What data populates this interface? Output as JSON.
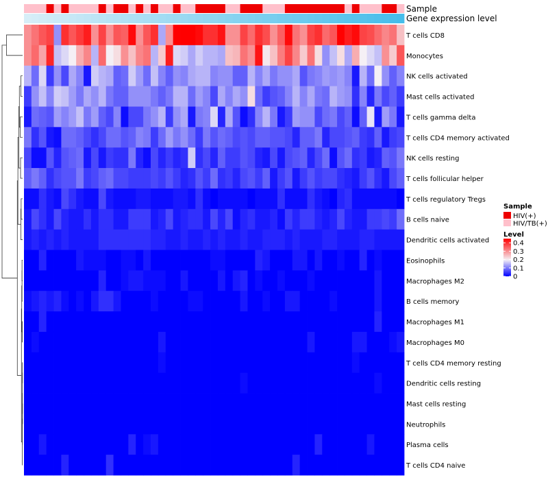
{
  "chart_data": {
    "type": "heatmap",
    "title": "",
    "annotation_labels": [
      "Sample",
      "Gene expression level"
    ],
    "rows": [
      "T cells CD8",
      "Monocytes",
      "NK cells activated",
      "Mast cells activated",
      "T cells gamma delta",
      "T cells CD4 memory activated",
      "NK cells resting",
      "T cells follicular helper",
      "T cells regulatory  Tregs",
      "B cells naive",
      "Dendritic cells activated",
      "Eosinophils",
      "Macrophages M2",
      "B cells memory",
      "Macrophages M1",
      "Macrophages M0",
      "T cells CD4 memory resting",
      "Dendritic cells resting",
      "Mast cells resting",
      "Neutrophils",
      "Plasma cells",
      "T cells CD4 naive"
    ],
    "sample_groups": [
      "HIV/TB(+)",
      "HIV/TB(+)",
      "HIV/TB(+)",
      "HIV(+)",
      "HIV/TB(+)",
      "HIV(+)",
      "HIV/TB(+)",
      "HIV/TB(+)",
      "HIV/TB(+)",
      "HIV/TB(+)",
      "HIV(+)",
      "HIV/TB(+)",
      "HIV(+)",
      "HIV(+)",
      "HIV/TB(+)",
      "HIV(+)",
      "HIV/TB(+)",
      "HIV(+)",
      "HIV/TB(+)",
      "HIV/TB(+)",
      "HIV(+)",
      "HIV/TB(+)",
      "HIV/TB(+)",
      "HIV(+)",
      "HIV(+)",
      "HIV(+)",
      "HIV(+)",
      "HIV/TB(+)",
      "HIV/TB(+)",
      "HIV(+)",
      "HIV(+)",
      "HIV(+)",
      "HIV/TB(+)",
      "HIV/TB(+)",
      "HIV/TB(+)",
      "HIV(+)",
      "HIV(+)",
      "HIV(+)",
      "HIV(+)",
      "HIV(+)",
      "HIV(+)",
      "HIV(+)",
      "HIV(+)",
      "HIV/TB(+)",
      "HIV(+)",
      "HIV/TB(+)",
      "HIV/TB(+)",
      "HIV/TB(+)",
      "HIV(+)",
      "HIV(+)",
      "HIV/TB(+)"
    ],
    "expression_level_ramp": [
      "#d7eef8",
      "#46bdea"
    ],
    "values": [
      [
        0.3,
        0.33,
        0.36,
        0.38,
        0.12,
        0.4,
        0.36,
        0.39,
        0.42,
        0.3,
        0.38,
        0.3,
        0.36,
        0.35,
        0.44,
        0.3,
        0.36,
        0.4,
        0.14,
        0.3,
        0.45,
        0.45,
        0.45,
        0.44,
        0.4,
        0.4,
        0.43,
        0.3,
        0.3,
        0.38,
        0.34,
        0.4,
        0.37,
        0.3,
        0.35,
        0.44,
        0.33,
        0.3,
        0.38,
        0.4,
        0.34,
        0.36,
        0.45,
        0.42,
        0.44,
        0.38,
        0.37,
        0.34,
        0.31,
        0.33,
        0.25
      ],
      [
        0.3,
        0.34,
        0.28,
        0.41,
        0.16,
        0.18,
        0.2,
        0.27,
        0.31,
        0.15,
        0.34,
        0.2,
        0.22,
        0.3,
        0.25,
        0.31,
        0.33,
        0.15,
        0.24,
        0.42,
        0.18,
        0.17,
        0.14,
        0.17,
        0.15,
        0.15,
        0.14,
        0.25,
        0.26,
        0.33,
        0.3,
        0.43,
        0.21,
        0.25,
        0.32,
        0.38,
        0.31,
        0.24,
        0.33,
        0.22,
        0.12,
        0.16,
        0.22,
        0.14,
        0.27,
        0.2,
        0.18,
        0.16,
        0.3,
        0.24,
        0.36
      ],
      [
        0.15,
        0.09,
        0.18,
        0.05,
        0.12,
        0.06,
        0.14,
        0.11,
        0.02,
        0.17,
        0.15,
        0.14,
        0.08,
        0.09,
        0.17,
        0.13,
        0.09,
        0.16,
        0.11,
        0.08,
        0.12,
        0.11,
        0.14,
        0.15,
        0.15,
        0.11,
        0.12,
        0.12,
        0.08,
        0.08,
        0.15,
        0.11,
        0.14,
        0.1,
        0.12,
        0.12,
        0.14,
        0.07,
        0.1,
        0.11,
        0.13,
        0.12,
        0.13,
        0.11,
        0.02,
        0.15,
        0.09,
        0.2,
        0.12,
        0.08,
        0.11
      ],
      [
        0.05,
        0.12,
        0.16,
        0.11,
        0.17,
        0.16,
        0.13,
        0.1,
        0.14,
        0.12,
        0.15,
        0.1,
        0.08,
        0.08,
        0.12,
        0.12,
        0.12,
        0.1,
        0.08,
        0.1,
        0.15,
        0.15,
        0.09,
        0.13,
        0.11,
        0.06,
        0.14,
        0.11,
        0.14,
        0.12,
        0.22,
        0.09,
        0.05,
        0.07,
        0.08,
        0.11,
        0.15,
        0.11,
        0.14,
        0.1,
        0.09,
        0.15,
        0.13,
        0.12,
        0.04,
        0.11,
        0.03,
        0.1,
        0.06,
        0.08,
        0.05
      ],
      [
        0.02,
        0.09,
        0.08,
        0.07,
        0.13,
        0.11,
        0.13,
        0.16,
        0.1,
        0.13,
        0.08,
        0.06,
        0.11,
        0.01,
        0.06,
        0.06,
        0.1,
        0.12,
        0.15,
        0.05,
        0.12,
        0.14,
        0.02,
        0.1,
        0.11,
        0.18,
        0.03,
        0.14,
        0.07,
        0.01,
        0.04,
        0.11,
        0.15,
        0.1,
        0.02,
        0.05,
        0.13,
        0.12,
        0.12,
        0.06,
        0.09,
        0.1,
        0.06,
        0.08,
        0.01,
        0.08,
        0.19,
        0.02,
        0.13,
        0.1,
        0.02
      ],
      [
        0.1,
        0.04,
        0.07,
        0.02,
        0.01,
        0.09,
        0.09,
        0.08,
        0.06,
        0.04,
        0.06,
        0.09,
        0.09,
        0.07,
        0.08,
        0.11,
        0.1,
        0.05,
        0.09,
        0.13,
        0.1,
        0.12,
        0.09,
        0.05,
        0.1,
        0.07,
        0.09,
        0.08,
        0.06,
        0.07,
        0.06,
        0.08,
        0.08,
        0.07,
        0.07,
        0.06,
        0.03,
        0.08,
        0.08,
        0.1,
        0.03,
        0.06,
        0.06,
        0.07,
        0.08,
        0.05,
        0.04,
        0.08,
        0.02,
        0.05,
        0.06
      ],
      [
        0.06,
        0.01,
        0.01,
        0.07,
        0.03,
        0.07,
        0.08,
        0.09,
        0.02,
        0.06,
        0.02,
        0.05,
        0.04,
        0.04,
        0.1,
        0.03,
        0.01,
        0.06,
        0.03,
        0.05,
        0.03,
        0.04,
        0.17,
        0.04,
        0.06,
        0.03,
        0.08,
        0.05,
        0.05,
        0.07,
        0.06,
        0.03,
        0.02,
        0.06,
        0.02,
        0.06,
        0.07,
        0.08,
        0.03,
        0.06,
        0.09,
        0.01,
        0.07,
        0.09,
        0.04,
        0.05,
        0.02,
        0.03,
        0.08,
        0.07,
        0.1
      ],
      [
        0.08,
        0.1,
        0.08,
        0.04,
        0.06,
        0.07,
        0.07,
        0.1,
        0.05,
        0.06,
        0.08,
        0.09,
        0.06,
        0.06,
        0.05,
        0.05,
        0.05,
        0.06,
        0.05,
        0.07,
        0.05,
        0.03,
        0.04,
        0.07,
        0.05,
        0.09,
        0.04,
        0.05,
        0.03,
        0.06,
        0.07,
        0.05,
        0.08,
        0.02,
        0.05,
        0.07,
        0.02,
        0.05,
        0.07,
        0.05,
        0.06,
        0.06,
        0.04,
        0.03,
        0.02,
        0.05,
        0.07,
        0.04,
        0.02,
        0.06,
        0.08
      ],
      [
        0.01,
        0.01,
        0.04,
        0.02,
        0.01,
        0.06,
        0.04,
        0.02,
        0.01,
        0.01,
        0.06,
        0.02,
        0.01,
        0.01,
        0.01,
        0.02,
        0.02,
        0.01,
        0.01,
        0.01,
        0.02,
        0.02,
        0.01,
        0.04,
        0.01,
        0.0,
        0.01,
        0.01,
        0.01,
        0.01,
        0.0,
        0.01,
        0.01,
        0.01,
        0.04,
        0.01,
        0.01,
        0.01,
        0.04,
        0.02,
        0.01,
        0.0,
        0.03,
        0.04,
        0.01,
        0.01,
        0.01,
        0.01,
        0.01,
        0.01,
        0.0
      ],
      [
        0.02,
        0.06,
        0.04,
        0.02,
        0.06,
        0.03,
        0.02,
        0.02,
        0.04,
        0.02,
        0.04,
        0.04,
        0.02,
        0.02,
        0.05,
        0.05,
        0.05,
        0.02,
        0.03,
        0.06,
        0.02,
        0.03,
        0.04,
        0.04,
        0.02,
        0.06,
        0.03,
        0.06,
        0.01,
        0.03,
        0.04,
        0.02,
        0.02,
        0.03,
        0.01,
        0.05,
        0.03,
        0.05,
        0.05,
        0.03,
        0.02,
        0.03,
        0.06,
        0.03,
        0.02,
        0.02,
        0.05,
        0.05,
        0.06,
        0.05,
        0.09
      ],
      [
        0.02,
        0.03,
        0.02,
        0.03,
        0.02,
        0.03,
        0.02,
        0.02,
        0.02,
        0.02,
        0.04,
        0.04,
        0.04,
        0.04,
        0.04,
        0.04,
        0.04,
        0.03,
        0.03,
        0.02,
        0.02,
        0.03,
        0.02,
        0.02,
        0.03,
        0.02,
        0.03,
        0.02,
        0.02,
        0.03,
        0.02,
        0.02,
        0.03,
        0.03,
        0.03,
        0.02,
        0.03,
        0.02,
        0.02,
        0.02,
        0.03,
        0.03,
        0.02,
        0.02,
        0.02,
        0.03,
        0.03,
        0.02,
        0.02,
        0.02,
        0.02
      ],
      [
        0.0,
        0.0,
        0.03,
        0.0,
        0.0,
        0.0,
        0.0,
        0.02,
        0.01,
        0.01,
        0.01,
        0.0,
        0.0,
        0.01,
        0.01,
        0.0,
        0.02,
        0.0,
        0.0,
        0.0,
        0.0,
        0.0,
        0.0,
        0.0,
        0.0,
        0.01,
        0.01,
        0.0,
        0.0,
        0.0,
        0.0,
        0.03,
        0.02,
        0.0,
        0.0,
        0.0,
        0.02,
        0.02,
        0.0,
        0.02,
        0.0,
        0.0,
        0.01,
        0.0,
        0.0,
        0.03,
        0.0,
        0.01,
        0.0,
        0.0,
        0.0
      ],
      [
        0.0,
        0.0,
        0.0,
        0.0,
        0.0,
        0.0,
        0.0,
        0.0,
        0.0,
        0.0,
        0.03,
        0.0,
        0.0,
        0.01,
        0.02,
        0.02,
        0.01,
        0.01,
        0.01,
        0.0,
        0.0,
        0.02,
        0.0,
        0.0,
        0.0,
        0.0,
        0.02,
        0.0,
        0.02,
        0.03,
        0.0,
        0.01,
        0.0,
        0.0,
        0.01,
        0.0,
        0.0,
        0.0,
        0.01,
        0.0,
        0.0,
        0.0,
        0.0,
        0.0,
        0.0,
        0.0,
        0.0,
        0.02,
        0.0,
        0.0,
        0.0
      ],
      [
        0.01,
        0.02,
        0.03,
        0.02,
        0.03,
        0.01,
        0.0,
        0.01,
        0.0,
        0.02,
        0.04,
        0.04,
        0.02,
        0.0,
        0.0,
        0.0,
        0.0,
        0.01,
        0.0,
        0.0,
        0.0,
        0.0,
        0.01,
        0.01,
        0.0,
        0.0,
        0.0,
        0.0,
        0.0,
        0.02,
        0.0,
        0.0,
        0.01,
        0.0,
        0.0,
        0.02,
        0.02,
        0.0,
        0.0,
        0.0,
        0.0,
        0.01,
        0.0,
        0.0,
        0.0,
        0.0,
        0.0,
        0.02,
        0.0,
        0.0,
        0.0
      ],
      [
        0.0,
        0.0,
        0.03,
        0.0,
        0.0,
        0.0,
        0.0,
        0.0,
        0.0,
        0.0,
        0.0,
        0.0,
        0.0,
        0.0,
        0.0,
        0.0,
        0.0,
        0.0,
        0.0,
        0.0,
        0.0,
        0.0,
        0.0,
        0.0,
        0.0,
        0.0,
        0.0,
        0.0,
        0.0,
        0.0,
        0.0,
        0.0,
        0.0,
        0.0,
        0.0,
        0.0,
        0.0,
        0.0,
        0.0,
        0.0,
        0.0,
        0.0,
        0.0,
        0.0,
        0.0,
        0.0,
        0.0,
        0.03,
        0.0,
        0.0,
        0.0
      ],
      [
        0.0,
        0.01,
        0.0,
        0.0,
        0.0,
        0.0,
        0.0,
        0.0,
        0.0,
        0.0,
        0.0,
        0.0,
        0.0,
        0.0,
        0.0,
        0.0,
        0.0,
        0.0,
        0.02,
        0.0,
        0.0,
        0.0,
        0.0,
        0.0,
        0.0,
        0.0,
        0.0,
        0.0,
        0.0,
        0.0,
        0.0,
        0.0,
        0.0,
        0.0,
        0.0,
        0.0,
        0.0,
        0.0,
        0.02,
        0.0,
        0.0,
        0.0,
        0.0,
        0.0,
        0.02,
        0.02,
        0.0,
        0.0,
        0.0,
        0.01,
        0.02
      ],
      [
        0.0,
        0.0,
        0.0,
        0.0,
        0.0,
        0.0,
        0.0,
        0.0,
        0.0,
        0.0,
        0.0,
        0.0,
        0.0,
        0.0,
        0.0,
        0.0,
        0.0,
        0.0,
        0.01,
        0.0,
        0.0,
        0.0,
        0.0,
        0.0,
        0.0,
        0.0,
        0.0,
        0.0,
        0.0,
        0.0,
        0.0,
        0.0,
        0.0,
        0.0,
        0.0,
        0.0,
        0.0,
        0.0,
        0.0,
        0.0,
        0.0,
        0.0,
        0.0,
        0.0,
        0.01,
        0.0,
        0.0,
        0.0,
        0.0,
        0.0,
        0.0
      ],
      [
        0.0,
        0.0,
        0.0,
        0.0,
        0.0,
        0.0,
        0.0,
        0.0,
        0.0,
        0.0,
        0.0,
        0.0,
        0.0,
        0.0,
        0.0,
        0.0,
        0.0,
        0.0,
        0.0,
        0.0,
        0.0,
        0.0,
        0.0,
        0.0,
        0.0,
        0.0,
        0.0,
        0.0,
        0.0,
        0.01,
        0.0,
        0.0,
        0.0,
        0.0,
        0.0,
        0.0,
        0.0,
        0.0,
        0.0,
        0.0,
        0.0,
        0.0,
        0.0,
        0.0,
        0.0,
        0.0,
        0.0,
        0.01,
        0.0,
        0.0,
        0.0
      ],
      [
        0.0,
        0.0,
        0.0,
        0.0,
        0.0,
        0.0,
        0.0,
        0.0,
        0.0,
        0.0,
        0.0,
        0.0,
        0.0,
        0.0,
        0.0,
        0.0,
        0.0,
        0.0,
        0.0,
        0.0,
        0.0,
        0.0,
        0.0,
        0.0,
        0.0,
        0.0,
        0.0,
        0.0,
        0.0,
        0.0,
        0.0,
        0.0,
        0.0,
        0.0,
        0.0,
        0.0,
        0.0,
        0.0,
        0.0,
        0.0,
        0.0,
        0.0,
        0.0,
        0.0,
        0.0,
        0.0,
        0.0,
        0.0,
        0.0,
        0.0,
        0.0
      ],
      [
        0.0,
        0.0,
        0.0,
        0.0,
        0.0,
        0.0,
        0.0,
        0.0,
        0.0,
        0.0,
        0.0,
        0.0,
        0.0,
        0.0,
        0.0,
        0.0,
        0.0,
        0.0,
        0.0,
        0.0,
        0.0,
        0.0,
        0.0,
        0.0,
        0.0,
        0.0,
        0.0,
        0.0,
        0.0,
        0.0,
        0.0,
        0.0,
        0.0,
        0.0,
        0.0,
        0.0,
        0.0,
        0.0,
        0.0,
        0.0,
        0.0,
        0.0,
        0.0,
        0.0,
        0.0,
        0.0,
        0.0,
        0.0,
        0.0,
        0.0,
        0.0
      ],
      [
        0.0,
        0.0,
        0.02,
        0.0,
        0.0,
        0.0,
        0.0,
        0.0,
        0.0,
        0.0,
        0.0,
        0.0,
        0.0,
        0.0,
        0.03,
        0.0,
        0.01,
        0.02,
        0.0,
        0.0,
        0.0,
        0.0,
        0.0,
        0.0,
        0.0,
        0.0,
        0.0,
        0.0,
        0.0,
        0.0,
        0.0,
        0.0,
        0.0,
        0.0,
        0.0,
        0.0,
        0.0,
        0.0,
        0.0,
        0.03,
        0.0,
        0.0,
        0.0,
        0.0,
        0.0,
        0.0,
        0.02,
        0.0,
        0.0,
        0.0,
        0.0
      ],
      [
        0.0,
        0.0,
        0.0,
        0.0,
        0.0,
        0.03,
        0.0,
        0.0,
        0.0,
        0.0,
        0.0,
        0.04,
        0.0,
        0.0,
        0.0,
        0.0,
        0.0,
        0.0,
        0.0,
        0.0,
        0.0,
        0.0,
        0.0,
        0.0,
        0.0,
        0.0,
        0.0,
        0.0,
        0.0,
        0.0,
        0.0,
        0.0,
        0.0,
        0.0,
        0.0,
        0.0,
        0.03,
        0.0,
        0.0,
        0.0,
        0.0,
        0.0,
        0.0,
        0.0,
        0.0,
        0.0,
        0.0,
        0.0,
        0.0,
        0.0,
        0.0
      ]
    ],
    "color_scale": {
      "min": 0,
      "mid": 0.2,
      "max": 0.45,
      "low": "#0000ff",
      "mid_color": "#f5f0f5",
      "high": "#ff0000"
    },
    "legend": {
      "sample_title": "Sample",
      "sample_entries": [
        {
          "label": "HIV(+)",
          "color": "#ee0000"
        },
        {
          "label": "HIV/TB(+)",
          "color": "#ffc0cb"
        }
      ],
      "level_title": "Level",
      "level_ticks": [
        "0.4",
        "0.3",
        "0.2",
        "0.1",
        "0"
      ],
      "level_tick_values": [
        0.4,
        0.3,
        0.2,
        0.1,
        0
      ]
    },
    "dendrogram": {
      "rows": "left",
      "merges": [
        [
          0,
          1,
          0.55
        ],
        [
          2,
          3,
          0.06
        ],
        [
          4,
          5,
          0.08
        ],
        [
          6,
          7,
          0.07
        ],
        [
          -2,
          -3,
          0.11
        ],
        [
          -5,
          -4,
          0.13
        ],
        [
          8,
          9,
          0.05
        ],
        [
          -7,
          10,
          0.06
        ],
        [
          -8,
          -6,
          0.16
        ],
        [
          11,
          12,
          0.02
        ],
        [
          13,
          -10,
          0.02
        ],
        [
          14,
          15,
          0.01
        ],
        [
          -11,
          -12,
          0.03
        ],
        [
          16,
          17,
          0.005
        ],
        [
          18,
          19,
          0.003
        ],
        [
          -14,
          -15,
          0.006
        ],
        [
          20,
          -16,
          0.008
        ],
        [
          21,
          -17,
          0.01
        ],
        [
          -13,
          -18,
          0.04
        ],
        [
          -9,
          -19,
          0.18
        ],
        [
          -1,
          -20,
          0.7
        ]
      ]
    }
  }
}
